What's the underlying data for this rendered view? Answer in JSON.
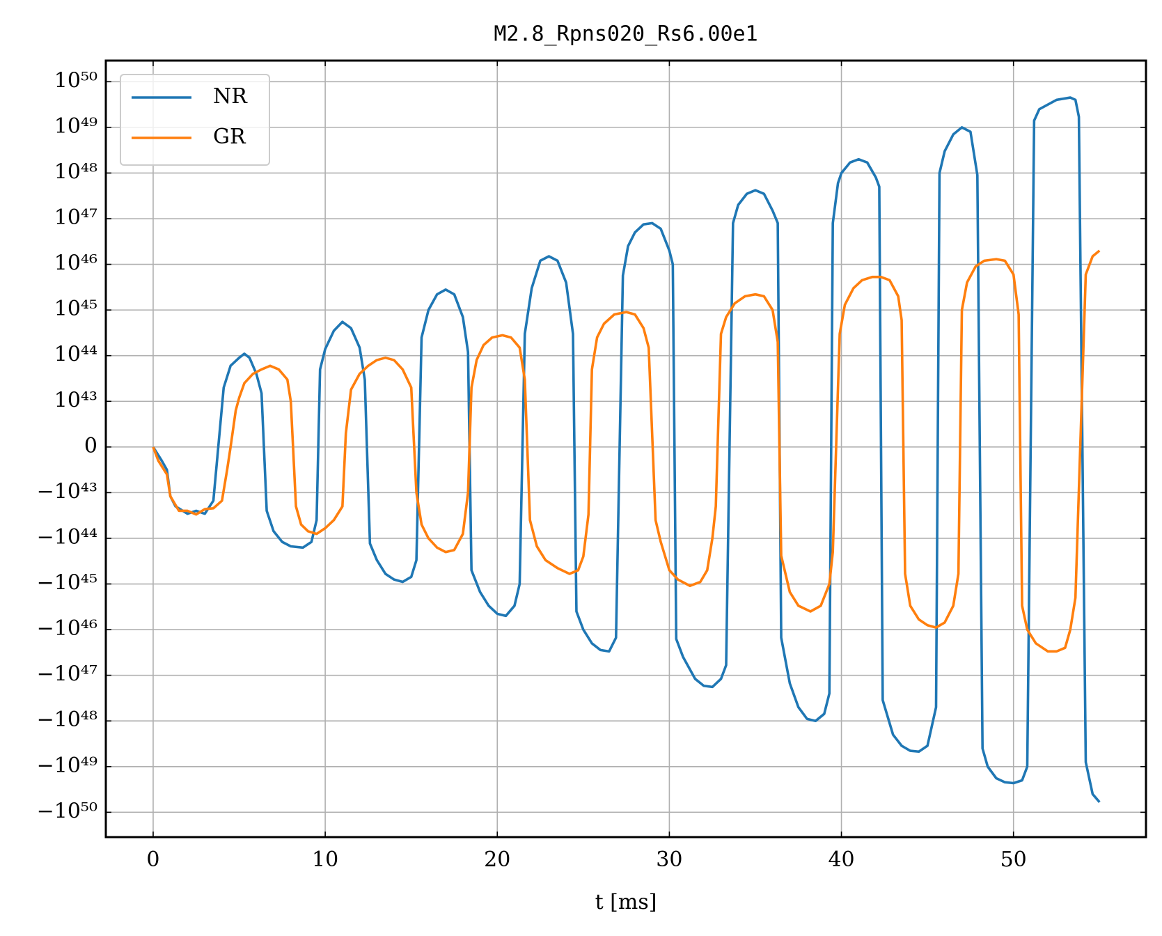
{
  "chart_data": {
    "type": "line",
    "title": "M2.8_Rpns020_Rs6.00e1",
    "xlabel": "t [ms]",
    "yscale": "symlog",
    "linthresh": 1e+43,
    "grid": true,
    "legend": "upper left",
    "xlim": [
      -2.75,
      57.7
    ],
    "xticks": [
      0,
      10,
      20,
      30,
      40,
      50
    ],
    "ylim": [
      -3.5e+50,
      2.9e+50
    ],
    "yticks": [
      {
        "value": -1e+50,
        "label": "−10⁵⁰"
      },
      {
        "value": -1e+49,
        "label": "−10⁴⁹"
      },
      {
        "value": -1e+48,
        "label": "−10⁴⁸"
      },
      {
        "value": -1e+47,
        "label": "−10⁴⁷"
      },
      {
        "value": -1e+46,
        "label": "−10⁴⁶"
      },
      {
        "value": -1e+45,
        "label": "−10⁴⁵"
      },
      {
        "value": -1e+44,
        "label": "−10⁴⁴"
      },
      {
        "value": -1e+43,
        "label": "−10⁴³"
      },
      0,
      {
        "value": 1e+43,
        "label": "10⁴³"
      },
      {
        "value": 1e+44,
        "label": "10⁴⁴"
      },
      {
        "value": 1e+45,
        "label": "10⁴⁵"
      },
      {
        "value": 1e+46,
        "label": "10⁴⁶"
      },
      {
        "value": 1e+47,
        "label": "10⁴⁷"
      },
      {
        "value": 1e+48,
        "label": "10⁴⁸"
      },
      {
        "value": 1e+49,
        "label": "10⁴⁹"
      },
      {
        "value": 1e+50,
        "label": "10⁵⁰"
      }
    ],
    "series": [
      {
        "name": "NR",
        "color": "#1f77b4",
        "x": [
          0,
          0.5,
          0.8,
          1.0,
          1.3,
          2.0,
          2.5,
          3.0,
          3.5,
          4.1,
          4.5,
          5.0,
          5.3,
          5.6,
          6.0,
          6.3,
          6.6,
          7.0,
          7.5,
          8.0,
          8.7,
          9.2,
          9.5,
          9.7,
          10.0,
          10.5,
          11.0,
          11.5,
          12.0,
          12.3,
          12.6,
          13.0,
          13.5,
          14.0,
          14.5,
          15.0,
          15.3,
          15.6,
          16.0,
          16.5,
          17.0,
          17.5,
          18.0,
          18.3,
          18.5,
          19.0,
          19.5,
          20.0,
          20.5,
          21.0,
          21.3,
          21.6,
          22.0,
          22.5,
          23.0,
          23.5,
          24.0,
          24.4,
          24.6,
          25.0,
          25.5,
          26.0,
          26.5,
          26.9,
          27.3,
          27.6,
          28.0,
          28.5,
          29.0,
          29.5,
          30.0,
          30.2,
          30.4,
          30.8,
          31.5,
          32.0,
          32.5,
          33.0,
          33.3,
          33.7,
          34.0,
          34.5,
          35.0,
          35.5,
          36.0,
          36.3,
          36.5,
          37.0,
          37.5,
          38.0,
          38.5,
          39.0,
          39.3,
          39.5,
          39.8,
          40.0,
          40.5,
          41.0,
          41.5,
          42.0,
          42.2,
          42.4,
          43.0,
          43.5,
          44.0,
          44.5,
          45.0,
          45.5,
          45.7,
          46.0,
          46.5,
          47.0,
          47.5,
          47.9,
          48.2,
          48.5,
          49.0,
          49.5,
          50.0,
          50.5,
          50.8,
          51.2,
          51.5,
          52.5,
          53.3,
          53.6,
          53.8,
          54.2,
          54.6,
          55.0
        ],
        "values": [
          0,
          -3e+42,
          -5e+42,
          -1.2e+43,
          -2e+43,
          -2.9e+43,
          -2.5e+43,
          -2.9e+43,
          -1.5e+43,
          2e+43,
          6e+43,
          9e+43,
          1.1e+44,
          9e+43,
          4e+43,
          1.5e+43,
          -2.5e+43,
          -7e+43,
          -1.2e+44,
          -1.5e+44,
          -1.6e+44,
          -1.2e+44,
          -4e+43,
          5e+43,
          1.4e+44,
          3.5e+44,
          5.5e+44,
          4e+44,
          1.5e+44,
          3e+43,
          -1.3e+44,
          -3e+44,
          -6e+44,
          -8e+44,
          -9e+44,
          -7e+44,
          -3e+44,
          2.5e+44,
          1e+45,
          2.2e+45,
          2.8e+45,
          2.2e+45,
          7e+44,
          1.2e+44,
          -5e+44,
          -1.5e+45,
          -3e+45,
          -4.5e+45,
          -5e+45,
          -3e+45,
          -1e+45,
          3e+44,
          3e+45,
          1.2e+46,
          1.5e+46,
          1.2e+46,
          4e+45,
          3e+44,
          -4e+45,
          -1e+46,
          -2e+46,
          -2.8e+46,
          -3e+46,
          -1.5e+46,
          5.7e+45,
          2.5e+46,
          5e+46,
          7.5e+46,
          8e+46,
          6e+46,
          2e+46,
          1e+46,
          -1.6e+46,
          -4e+46,
          -1.2e+47,
          -1.7e+47,
          -1.8e+47,
          -1.2e+47,
          -6e+46,
          8e+46,
          2e+47,
          3.5e+47,
          4.2e+47,
          3.5e+47,
          1.5e+47,
          8e+46,
          -1.5e+46,
          -1.5e+47,
          -5e+47,
          -9e+47,
          -1e+48,
          -7e+47,
          -2.5e+47,
          8e+46,
          6e+47,
          1e+48,
          1.7e+48,
          2e+48,
          1.7e+48,
          8e+47,
          5e+47,
          -3.5e+47,
          -2e+48,
          -3.5e+48,
          -4.5e+48,
          -4.7e+48,
          -3.5e+48,
          -5e+47,
          1e+48,
          3e+48,
          7e+48,
          1e+49,
          8e+48,
          9e+47,
          -4e+48,
          -1e+49,
          -1.8e+49,
          -2.2e+49,
          -2.3e+49,
          -2e+49,
          -1e+49,
          1.4e+49,
          2.5e+49,
          4e+49,
          4.5e+49,
          4e+49,
          1.7e+49,
          -8e+48,
          -4e+49,
          -6e+49
        ]
      },
      {
        "name": "GR",
        "color": "#ff7f0e",
        "x": [
          0,
          0.3,
          0.8,
          1.0,
          1.5,
          2.0,
          2.5,
          3.0,
          3.5,
          4.0,
          4.3,
          4.5,
          4.8,
          5.0,
          5.3,
          5.8,
          6.3,
          6.8,
          7.3,
          7.8,
          8.0,
          8.3,
          8.6,
          9.0,
          9.5,
          10.0,
          10.5,
          11.0,
          11.2,
          11.5,
          12.0,
          12.5,
          13.0,
          13.5,
          14.0,
          14.5,
          15.0,
          15.3,
          15.6,
          16.0,
          16.5,
          17.0,
          17.5,
          18.0,
          18.3,
          18.5,
          18.8,
          19.2,
          19.7,
          20.3,
          20.8,
          21.3,
          21.6,
          21.9,
          22.3,
          22.8,
          23.5,
          24.2,
          24.7,
          25.0,
          25.3,
          25.5,
          25.8,
          26.2,
          26.8,
          27.5,
          28.0,
          28.5,
          28.8,
          29.2,
          29.5,
          30.0,
          30.5,
          31.2,
          31.8,
          32.2,
          32.5,
          32.7,
          33.0,
          33.3,
          33.8,
          34.4,
          35.0,
          35.5,
          36.0,
          36.3,
          36.5,
          37.0,
          37.5,
          38.2,
          38.8,
          39.3,
          39.5,
          39.9,
          40.2,
          40.7,
          41.2,
          41.8,
          42.3,
          42.8,
          43.3,
          43.5,
          43.7,
          44.0,
          44.5,
          45.0,
          45.5,
          46.0,
          46.5,
          46.8,
          47.0,
          47.3,
          47.8,
          48.3,
          49.0,
          49.5,
          50.0,
          50.3,
          50.5,
          50.8,
          51.3,
          52.0,
          52.5,
          53.0,
          53.3,
          53.6,
          54.2,
          54.6,
          55.0
        ],
        "values": [
          0,
          -3e+42,
          -6e+42,
          -1.2e+43,
          -2.5e+43,
          -2.5e+43,
          -3e+43,
          -2.3e+43,
          -2.2e+43,
          -1.5e+43,
          -5e+42,
          0,
          8e+42,
          1.2e+43,
          2.5e+43,
          4e+43,
          5e+43,
          6e+43,
          5e+43,
          3e+43,
          1e+43,
          -2e+43,
          -5e+43,
          -7e+43,
          -8e+43,
          -6e+43,
          -4e+43,
          -2e+43,
          3e+42,
          1.8e+43,
          4e+43,
          6e+43,
          8e+43,
          9e+43,
          8e+43,
          5e+43,
          2e+43,
          -1e+43,
          -5e+43,
          -1e+44,
          -1.6e+44,
          -2e+44,
          -1.8e+44,
          -8e+43,
          -1e+43,
          2e+43,
          8e+43,
          1.7e+44,
          2.5e+44,
          2.8e+44,
          2.5e+44,
          1.5e+44,
          3e+43,
          -4e+43,
          -1.5e+44,
          -3e+44,
          -4.5e+44,
          -6e+44,
          -5e+44,
          -2.5e+44,
          -3e+43,
          5e+43,
          2.5e+44,
          5e+44,
          8e+44,
          9e+44,
          8e+44,
          4e+44,
          1.5e+44,
          -4e+43,
          -1.2e+44,
          -5e+44,
          -8e+44,
          -1.1e+45,
          -9e+44,
          -5e+44,
          -1e+44,
          -2e+43,
          3e+44,
          7e+44,
          1.4e+45,
          2e+45,
          2.2e+45,
          2e+45,
          1e+45,
          2e+44,
          -2.4e+44,
          -1.5e+45,
          -3e+45,
          -4e+45,
          -3e+45,
          -1e+45,
          -2e+44,
          3e+44,
          1.3e+45,
          3e+45,
          4.5e+45,
          5.3e+45,
          5.3e+45,
          4.5e+45,
          2e+45,
          6e+44,
          -6e+44,
          -3e+45,
          -6e+45,
          -8e+45,
          -9e+45,
          -7e+45,
          -3e+45,
          -6e+44,
          1e+45,
          4e+45,
          9e+45,
          1.2e+46,
          1.3e+46,
          1.2e+46,
          6e+45,
          8e+44,
          -3e+45,
          -1e+46,
          -2e+46,
          -3e+46,
          -3e+46,
          -2.5e+46,
          -1e+46,
          -2e+45,
          6e+45,
          1.5e+46,
          2e+46
        ]
      }
    ]
  }
}
